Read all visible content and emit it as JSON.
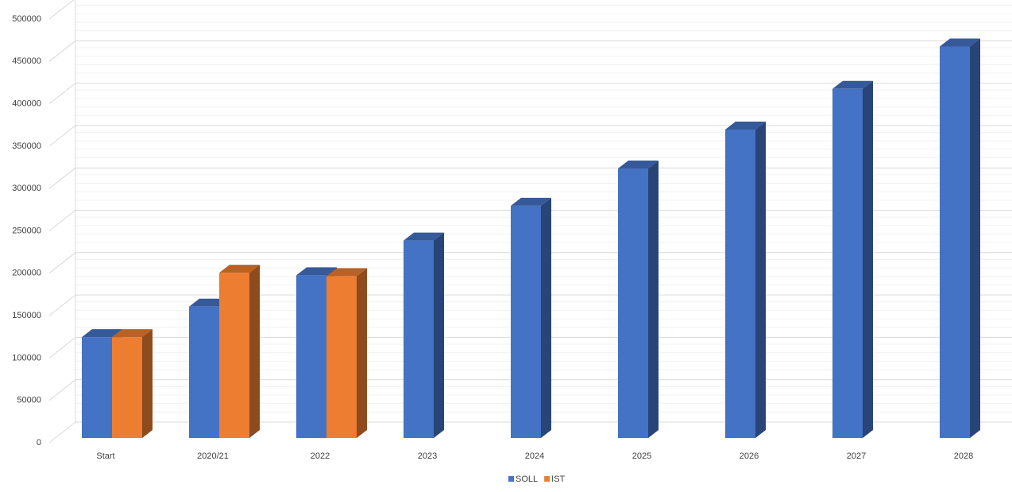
{
  "chart_data": {
    "type": "bar3d",
    "categories": [
      "Start",
      "2020/21",
      "2022",
      "2023",
      "2024",
      "2025",
      "2026",
      "2027",
      "2028"
    ],
    "series": [
      {
        "name": "SOLL",
        "color": "#4472c4",
        "values": [
          119000,
          155000,
          192000,
          233000,
          274000,
          318000,
          364000,
          412000,
          462000
        ]
      },
      {
        "name": "IST",
        "color": "#ed7d31",
        "values": [
          119000,
          195000,
          191000,
          null,
          null,
          null,
          null,
          null,
          null
        ]
      }
    ],
    "ylim": [
      0,
      500000
    ],
    "yticks": [
      0,
      50000,
      100000,
      150000,
      200000,
      250000,
      300000,
      350000,
      400000,
      450000,
      500000
    ],
    "grid": true,
    "legend": "bottom"
  }
}
